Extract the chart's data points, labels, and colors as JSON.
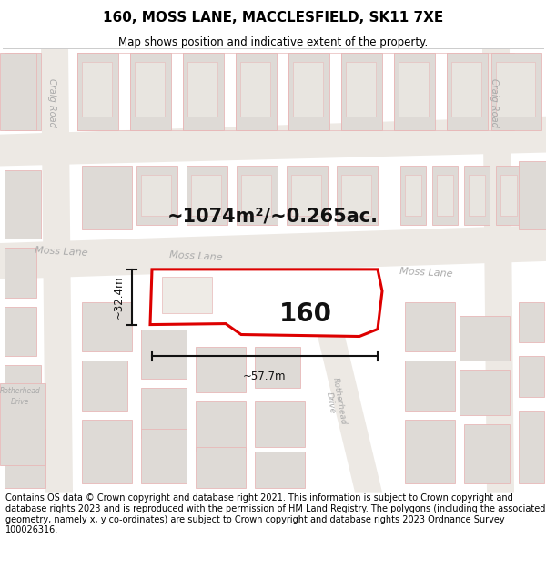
{
  "title": "160, MOSS LANE, MACCLESFIELD, SK11 7XE",
  "subtitle": "Map shows position and indicative extent of the property.",
  "area_label": "~1074m²/~0.265ac.",
  "property_number": "160",
  "dim_width": "~57.7m",
  "dim_height": "~32.4m",
  "footer": "Contains OS data © Crown copyright and database right 2021. This information is subject to Crown copyright and database rights 2023 and is reproduced with the permission of HM Land Registry. The polygons (including the associated geometry, namely x, y co-ordinates) are subject to Crown copyright and database rights 2023 Ordnance Survey 100026316.",
  "map_bg": "#f9f7f5",
  "road_fill": "#ede9e4",
  "road_edge": "none",
  "building_fill": "#dedad6",
  "building_stroke": "#e8b8b8",
  "property_stroke": "#dd0000",
  "property_fill": "#ffffff",
  "road_label_color": "#aaaaaa",
  "title_color": "#000000",
  "footer_color": "#000000",
  "dim_color": "#111111",
  "outline_color": "#e8b8b8",
  "title_fontsize": 11,
  "subtitle_fontsize": 8.5,
  "area_fontsize": 15,
  "prop_label_fontsize": 20,
  "dim_fontsize": 8.5,
  "road_label_fontsize": 8,
  "footer_fontsize": 7
}
